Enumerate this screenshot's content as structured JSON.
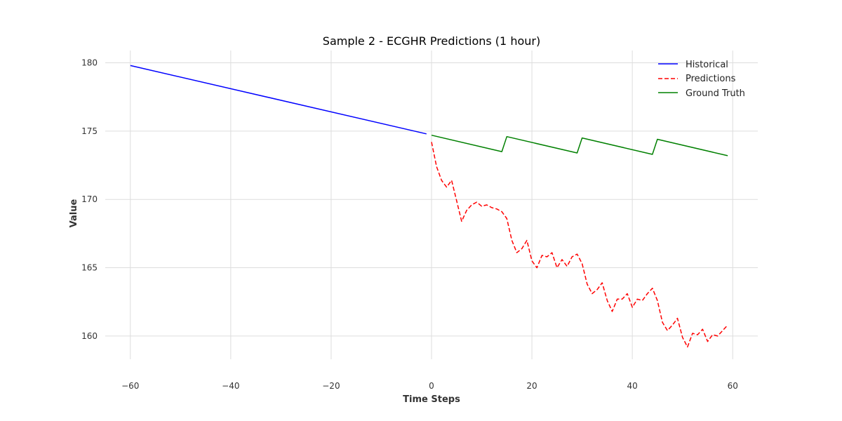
{
  "chart_data": {
    "type": "line",
    "title": "Sample 2 - ECGHR Predictions (1 hour)",
    "xlabel": "Time Steps",
    "ylabel": "Value",
    "xlim": [
      -65,
      65
    ],
    "ylim": [
      158.3,
      180.9
    ],
    "xticks": [
      -60,
      -40,
      -20,
      0,
      20,
      40,
      60
    ],
    "yticks": [
      160,
      165,
      170,
      175,
      180
    ],
    "xtick_labels": [
      "−60",
      "−40",
      "−20",
      "0",
      "20",
      "40",
      "60"
    ],
    "ytick_labels": [
      "160",
      "165",
      "170",
      "175",
      "180"
    ],
    "grid": true,
    "legend_position": "top-right",
    "series": [
      {
        "name": "Historical",
        "color": "#0000ff",
        "style": "solid",
        "x": [
          -60,
          -1
        ],
        "y": [
          179.8,
          174.8
        ]
      },
      {
        "name": "Predictions",
        "color": "#ff0000",
        "style": "dashed",
        "x": [
          0,
          1,
          2,
          3,
          4,
          5,
          6,
          7,
          8,
          9,
          10,
          11,
          12,
          13,
          14,
          15,
          16,
          17,
          18,
          19,
          20,
          21,
          22,
          23,
          24,
          25,
          26,
          27,
          28,
          29,
          30,
          31,
          32,
          33,
          34,
          35,
          36,
          37,
          38,
          39,
          40,
          41,
          42,
          43,
          44,
          45,
          46,
          47,
          48,
          49,
          50,
          51,
          52,
          53,
          54,
          55,
          56,
          57,
          58,
          59
        ],
        "y": [
          174.2,
          172.4,
          171.4,
          170.9,
          171.4,
          169.9,
          168.4,
          169.2,
          169.6,
          169.8,
          169.5,
          169.6,
          169.4,
          169.3,
          169.1,
          168.6,
          167.0,
          166.1,
          166.4,
          167.0,
          165.5,
          165.0,
          165.9,
          165.8,
          166.1,
          165.0,
          165.6,
          165.1,
          165.8,
          166.0,
          165.3,
          163.8,
          163.1,
          163.4,
          163.9,
          162.6,
          161.8,
          162.7,
          162.7,
          163.1,
          162.1,
          162.7,
          162.6,
          163.1,
          163.5,
          162.6,
          161.0,
          160.4,
          160.8,
          161.3,
          159.9,
          159.2,
          160.2,
          160.1,
          160.5,
          159.6,
          160.1,
          160.0,
          160.4,
          160.8
        ]
      },
      {
        "name": "Ground Truth",
        "color": "#008000",
        "style": "solid",
        "x": [
          0,
          14,
          15,
          29,
          30,
          44,
          45,
          59
        ],
        "y": [
          174.7,
          173.5,
          174.6,
          173.4,
          174.5,
          173.3,
          174.4,
          173.2
        ]
      }
    ]
  }
}
